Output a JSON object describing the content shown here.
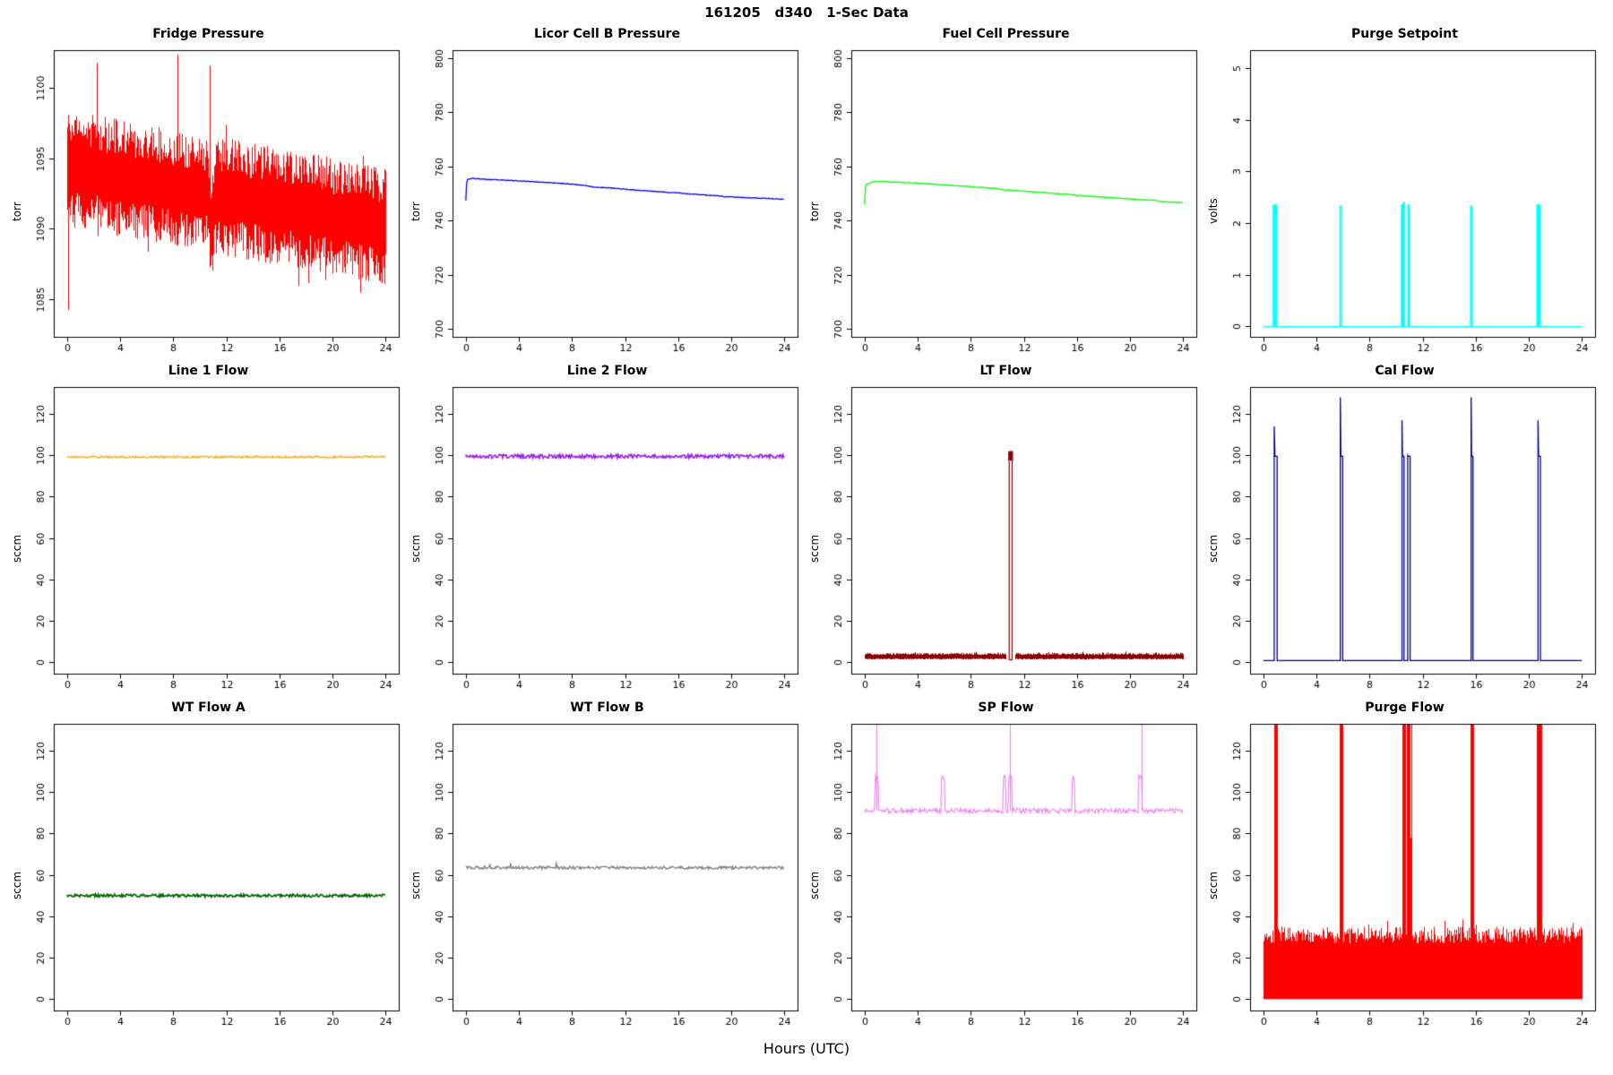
{
  "page": {
    "title": "161205   d340   1-Sec Data",
    "xlabel": "Hours (UTC)",
    "background": "#FFFFFF",
    "text_color": "#000000"
  },
  "chart_data": [
    {
      "type": "line",
      "title": "Fridge Pressure",
      "ylabel": "torr",
      "color": "#FF0000",
      "xlim": [
        -1,
        25
      ],
      "ylim": [
        1082.3,
        1102.7
      ],
      "xticks": [
        0,
        4,
        8,
        12,
        16,
        20,
        24
      ],
      "yticks": [
        1085,
        1090,
        1095,
        1100
      ],
      "seed": 11,
      "series": {
        "kind": "noisy_band",
        "center_start": 1094.3,
        "center_end": 1090.2,
        "half_width": 3.5,
        "dip": {
          "x": 10.85,
          "w": 0.3,
          "dy": -2.2
        },
        "spikes": [
          {
            "x": 0.06,
            "v": 1084.2
          },
          {
            "x": 2.25,
            "v": 1101.8
          },
          {
            "x": 8.3,
            "v": 1102.4
          },
          {
            "x": 10.75,
            "v": 1101.6
          }
        ]
      }
    },
    {
      "type": "line",
      "title": "Licor Cell B Pressure",
      "ylabel": "torr",
      "color": "#0000FF",
      "xlim": [
        -1,
        25
      ],
      "ylim": [
        697,
        803
      ],
      "xticks": [
        0,
        4,
        8,
        12,
        16,
        20,
        24
      ],
      "yticks": [
        700,
        720,
        740,
        760,
        780,
        800
      ],
      "seed": 23,
      "series": {
        "kind": "trend",
        "jitter": 0.12,
        "points": [
          [
            0,
            747.5
          ],
          [
            0.08,
            755.2
          ],
          [
            0.5,
            755.6
          ],
          [
            1,
            755.4
          ],
          [
            2,
            755.1
          ],
          [
            3,
            754.9
          ],
          [
            4,
            754.7
          ],
          [
            5,
            754.4
          ],
          [
            6,
            754.1
          ],
          [
            7,
            753.8
          ],
          [
            8,
            753.5
          ],
          [
            9,
            753.0
          ],
          [
            9.6,
            752.4
          ],
          [
            10,
            752.3
          ],
          [
            11,
            752.0
          ],
          [
            12,
            751.6
          ],
          [
            13,
            751.2
          ],
          [
            14,
            750.9
          ],
          [
            15,
            750.5
          ],
          [
            16,
            750.2
          ],
          [
            17,
            749.8
          ],
          [
            18,
            749.5
          ],
          [
            19,
            749.2
          ],
          [
            19.6,
            748.8
          ],
          [
            20,
            748.8
          ],
          [
            21,
            748.5
          ],
          [
            22,
            748.3
          ],
          [
            23,
            748.1
          ],
          [
            24,
            747.9
          ]
        ]
      }
    },
    {
      "type": "line",
      "title": "Fuel Cell Pressure",
      "ylabel": "torr",
      "color": "#00FF00",
      "xlim": [
        -1,
        25
      ],
      "ylim": [
        697,
        803
      ],
      "xticks": [
        0,
        4,
        8,
        12,
        16,
        20,
        24
      ],
      "yticks": [
        700,
        720,
        740,
        760,
        780,
        800
      ],
      "seed": 31,
      "series": {
        "kind": "trend",
        "jitter": 0.12,
        "points": [
          [
            0,
            746.0
          ],
          [
            0.08,
            753.2
          ],
          [
            0.6,
            754.3
          ],
          [
            1,
            754.5
          ],
          [
            2,
            754.3
          ],
          [
            3,
            754.05
          ],
          [
            4,
            753.8
          ],
          [
            5,
            753.5
          ],
          [
            6,
            753.2
          ],
          [
            7,
            752.9
          ],
          [
            8,
            752.55
          ],
          [
            9,
            752.2
          ],
          [
            10,
            751.8
          ],
          [
            10.5,
            751.35
          ],
          [
            11,
            751.25
          ],
          [
            12,
            750.9
          ],
          [
            13,
            750.5
          ],
          [
            14,
            750.15
          ],
          [
            15,
            749.8
          ],
          [
            16,
            749.4
          ],
          [
            17,
            749.0
          ],
          [
            18,
            748.7
          ],
          [
            19,
            748.3
          ],
          [
            20,
            748.0
          ],
          [
            21,
            747.7
          ],
          [
            22,
            747.45
          ],
          [
            22.4,
            747.0
          ],
          [
            23,
            746.85
          ],
          [
            24,
            746.6
          ]
        ]
      }
    },
    {
      "type": "line",
      "title": "Purge Setpoint",
      "ylabel": "volts",
      "color": "#00FFFF",
      "xlim": [
        -1,
        25
      ],
      "ylim": [
        -0.2,
        5.35
      ],
      "xticks": [
        0,
        4,
        8,
        12,
        16,
        20,
        24
      ],
      "yticks": [
        0,
        1,
        2,
        3,
        4,
        5
      ],
      "seed": 47,
      "series": {
        "kind": "pulses",
        "base": 0,
        "pulses": [
          {
            "x0": 0.75,
            "x1": 0.84,
            "v": 2.35
          },
          {
            "x0": 0.9,
            "x1": 1.0,
            "v": 2.35
          },
          {
            "x0": 5.78,
            "x1": 5.9,
            "v": 2.33
          },
          {
            "x0": 10.42,
            "x1": 10.5,
            "v": 2.35
          },
          {
            "x0": 10.55,
            "x1": 10.62,
            "v": 2.4
          },
          {
            "x0": 10.9,
            "x1": 11.0,
            "v": 2.35
          },
          {
            "x0": 15.62,
            "x1": 15.73,
            "v": 2.33
          },
          {
            "x0": 20.62,
            "x1": 20.72,
            "v": 2.35
          },
          {
            "x0": 20.78,
            "x1": 20.86,
            "v": 2.35
          }
        ]
      }
    },
    {
      "type": "line",
      "title": "Line 1 Flow",
      "ylabel": "sccm",
      "color": "#FFA500",
      "xlim": [
        -1,
        25
      ],
      "ylim": [
        -5.5,
        133
      ],
      "xticks": [
        0,
        4,
        8,
        12,
        16,
        20,
        24
      ],
      "yticks": [
        0,
        20,
        40,
        60,
        80,
        100,
        120
      ],
      "seed": 59,
      "series": {
        "kind": "flat_noisy",
        "base": 99.2,
        "amp": 0.5,
        "lw": 1.3
      }
    },
    {
      "type": "line",
      "title": "Line 2 Flow",
      "ylabel": "sccm",
      "color": "#A020F0",
      "xlim": [
        -1,
        25
      ],
      "ylim": [
        -5.5,
        133
      ],
      "xticks": [
        0,
        4,
        8,
        12,
        16,
        20,
        24
      ],
      "yticks": [
        0,
        20,
        40,
        60,
        80,
        100,
        120
      ],
      "seed": 67,
      "series": {
        "kind": "flat_noisy",
        "base": 99.5,
        "amp": 0.9,
        "lw": 1.7
      }
    },
    {
      "type": "line",
      "title": "LT Flow",
      "ylabel": "sccm",
      "color": "#8B0000",
      "xlim": [
        -1,
        25
      ],
      "ylim": [
        -5.5,
        133
      ],
      "xticks": [
        0,
        4,
        8,
        12,
        16,
        20,
        24
      ],
      "yticks": [
        0,
        20,
        40,
        60,
        80,
        100,
        120
      ],
      "seed": 71,
      "series": {
        "kind": "band_pulse",
        "band_lo": 1.6,
        "band_hi": 4.0,
        "gap": [
          10.68,
          11.32
        ],
        "pulse": {
          "x0": 10.9,
          "x1": 11.12,
          "top": 101.8,
          "cap_lo": 97.5
        }
      }
    },
    {
      "type": "line",
      "title": "Cal Flow",
      "ylabel": "sccm",
      "color": "#00008B",
      "xlim": [
        -1,
        25
      ],
      "ylim": [
        -5.5,
        133
      ],
      "xticks": [
        0,
        4,
        8,
        12,
        16,
        20,
        24
      ],
      "yticks": [
        0,
        20,
        40,
        60,
        80,
        100,
        120
      ],
      "seed": 79,
      "series": {
        "kind": "cal_pulses",
        "base": 0.8,
        "plateau": 99.5,
        "pulses": [
          {
            "x0": 0.82,
            "x1": 1.04,
            "peak": 114
          },
          {
            "x0": 5.8,
            "x1": 5.98,
            "peak": 128
          },
          {
            "x0": 10.45,
            "x1": 10.6,
            "peak": 117
          },
          {
            "x0": 10.88,
            "x1": 11.06,
            "peak": 100
          },
          {
            "x0": 15.66,
            "x1": 15.8,
            "peak": 128
          },
          {
            "x0": 20.7,
            "x1": 20.88,
            "peak": 117
          }
        ]
      }
    },
    {
      "type": "line",
      "title": "WT Flow A",
      "ylabel": "sccm",
      "color": "#006400",
      "xlim": [
        -1,
        25
      ],
      "ylim": [
        -5.5,
        133
      ],
      "xticks": [
        0,
        4,
        8,
        12,
        16,
        20,
        24
      ],
      "yticks": [
        0,
        20,
        40,
        60,
        80,
        100,
        120
      ],
      "seed": 83,
      "series": {
        "kind": "flat_noisy",
        "base": 50,
        "amp": 0.7,
        "lw": 1.7
      }
    },
    {
      "type": "line",
      "title": "WT Flow B",
      "ylabel": "sccm",
      "color": "#7F7F7F",
      "xlim": [
        -1,
        25
      ],
      "ylim": [
        -5.5,
        133
      ],
      "xticks": [
        0,
        4,
        8,
        12,
        16,
        20,
        24
      ],
      "yticks": [
        0,
        20,
        40,
        60,
        80,
        100,
        120
      ],
      "seed": 89,
      "series": {
        "kind": "flat_noisy",
        "base": 63.5,
        "amp": 0.7,
        "lw": 1.3,
        "blip_amp": 1.8
      }
    },
    {
      "type": "line",
      "title": "SP Flow",
      "ylabel": "sccm",
      "color": "#EE82EE",
      "xlim": [
        -1,
        25
      ],
      "ylim": [
        -5.5,
        133
      ],
      "xticks": [
        0,
        4,
        8,
        12,
        16,
        20,
        24
      ],
      "yticks": [
        0,
        20,
        40,
        60,
        80,
        100,
        120
      ],
      "seed": 97,
      "series": {
        "kind": "noisy_pulses",
        "base": 91,
        "amp": 1.2,
        "window_v": 107,
        "windows": [
          {
            "x0": 0.78,
            "x1": 1.08
          },
          {
            "x0": 5.78,
            "x1": 6.02
          },
          {
            "x0": 10.45,
            "x1": 10.65
          },
          {
            "x0": 10.88,
            "x1": 11.1
          },
          {
            "x0": 15.62,
            "x1": 15.85
          },
          {
            "x0": 20.65,
            "x1": 20.95
          }
        ],
        "spikes": [
          {
            "x": 0.9,
            "v": 142
          },
          {
            "x": 10.93,
            "v": 142
          },
          {
            "x": 20.9,
            "v": 142
          }
        ]
      }
    },
    {
      "type": "line",
      "title": "Purge Flow",
      "ylabel": "sccm",
      "color": "#FF0000",
      "xlim": [
        -1,
        25
      ],
      "ylim": [
        -5.5,
        133
      ],
      "xticks": [
        0,
        4,
        8,
        12,
        16,
        20,
        24
      ],
      "yticks": [
        0,
        20,
        40,
        60,
        80,
        100,
        120
      ],
      "seed": 101,
      "series": {
        "kind": "noise_spikes",
        "hi_base": 27,
        "hi_var": 8,
        "spike_v": 142,
        "windows": [
          {
            "x0": 0.78,
            "x1": 1.06
          },
          {
            "x0": 5.72,
            "x1": 5.98
          },
          {
            "x0": 10.45,
            "x1": 10.72
          },
          {
            "x0": 10.8,
            "x1": 11.18
          },
          {
            "x0": 15.58,
            "x1": 15.85
          },
          {
            "x0": 20.6,
            "x1": 20.98
          }
        ]
      }
    }
  ]
}
